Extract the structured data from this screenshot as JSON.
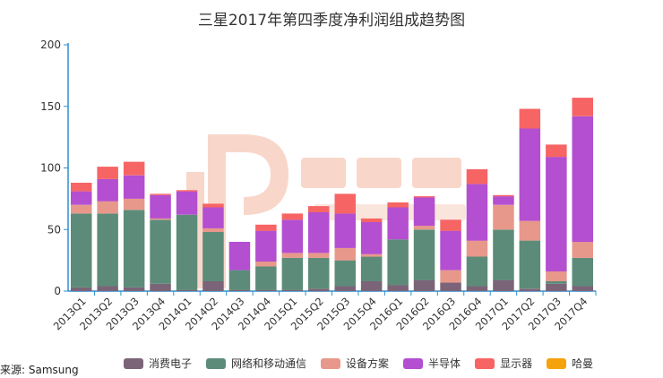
{
  "source_label": "来源: Samsung",
  "chart_data": {
    "type": "bar",
    "stacked": true,
    "title": "三星2017年第四季度净利润组成趋势图",
    "xlabel": "",
    "ylabel": "",
    "ylim": [
      0,
      200
    ],
    "yticks": [
      0,
      50,
      100,
      150,
      200
    ],
    "grid": false,
    "legend_position": "bottom",
    "categories": [
      "2013Q1",
      "2013Q2",
      "2013Q3",
      "2013Q4",
      "2014Q1",
      "2014Q2",
      "2014Q3",
      "2014Q4",
      "2015Q1",
      "2015Q2",
      "2015Q3",
      "2015Q4",
      "2016Q1",
      "2016Q2",
      "2016Q3",
      "2016Q4",
      "2017Q1",
      "2017Q2",
      "2017Q3",
      "2017Q4"
    ],
    "series": [
      {
        "name": "消费电子",
        "color": "#7b6478",
        "values": [
          3,
          4,
          3,
          6,
          1,
          8,
          1,
          1,
          1,
          2,
          4,
          8,
          5,
          9,
          7,
          4,
          9,
          2,
          6,
          4
        ]
      },
      {
        "name": "网络和移动通信",
        "color": "#5c8c79",
        "values": [
          60,
          59,
          63,
          52,
          61,
          40,
          16,
          19,
          26,
          25,
          21,
          20,
          37,
          41,
          0,
          24,
          41,
          39,
          2,
          23
        ]
      },
      {
        "name": "设备方案",
        "color": "#e8988a",
        "values": [
          7,
          10,
          9,
          1,
          0,
          3,
          0,
          4,
          4,
          4,
          10,
          2,
          0,
          3,
          10,
          13,
          20,
          16,
          8,
          13
        ]
      },
      {
        "name": "半导体",
        "color": "#b34fd0",
        "values": [
          11,
          18,
          19,
          19,
          19,
          17,
          23,
          25,
          27,
          33,
          28,
          26,
          26,
          23,
          32,
          46,
          7,
          75,
          93,
          102
        ]
      },
      {
        "name": "显示器",
        "color": "#f76464",
        "values": [
          7,
          10,
          11,
          1,
          1,
          3,
          0,
          5,
          5,
          5,
          16,
          3,
          4,
          1,
          9,
          12,
          1,
          16,
          10,
          15
        ]
      },
      {
        "name": "哈曼",
        "color": "#f5a30c",
        "values": [
          0,
          0,
          0,
          0,
          0,
          0,
          0,
          0,
          0,
          0,
          0,
          0,
          0,
          0,
          0,
          0,
          0,
          0,
          0,
          0
        ]
      }
    ]
  }
}
